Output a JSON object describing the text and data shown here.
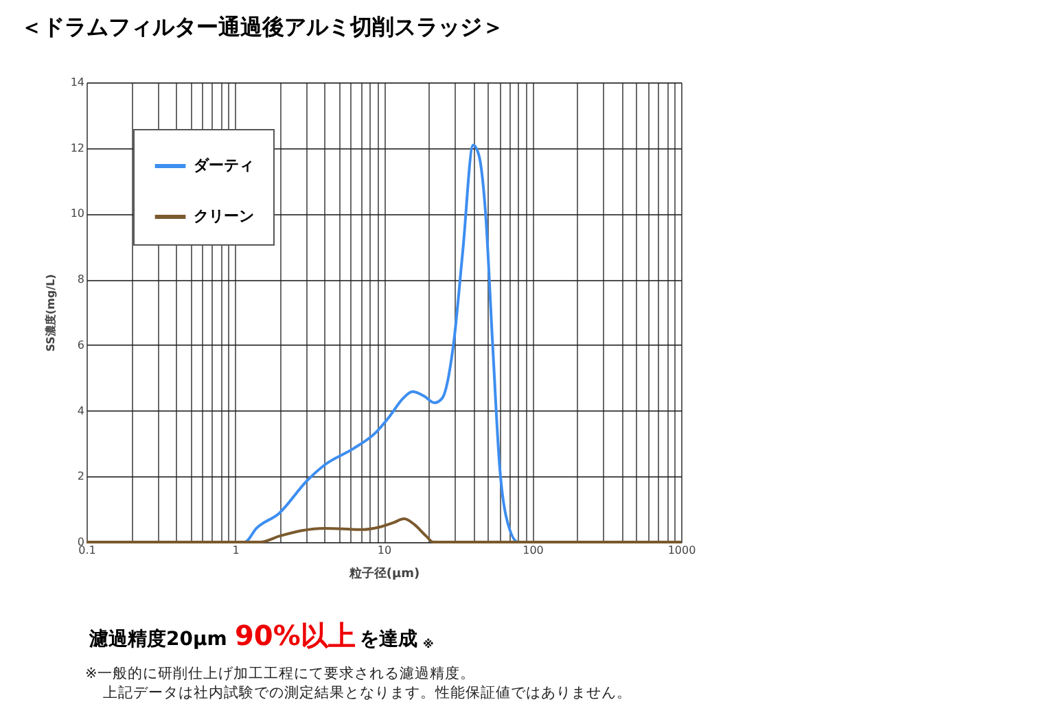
{
  "chart_data": {
    "type": "line",
    "title": "＜ドラムフィルター通過後アルミ切削スラッジ＞",
    "xlabel": "粒子径(μm)",
    "ylabel": "SS濃度(mg/L)",
    "log": "x",
    "grid": true,
    "legend": "top left",
    "marker": "none",
    "line_style": "solid",
    "xlim": [
      0.1,
      1000
    ],
    "ylim": [
      0,
      14
    ],
    "xticks": [
      0.1,
      {
        "value": 0.2,
        "label": null
      },
      {
        "value": 0.3,
        "label": null
      },
      {
        "value": 0.4,
        "label": null
      },
      {
        "value": 0.5,
        "label": null
      },
      {
        "value": 0.6,
        "label": null
      },
      {
        "value": 0.7,
        "label": null
      },
      {
        "value": 0.8,
        "label": null
      },
      {
        "value": 0.9,
        "label": null
      },
      1,
      {
        "value": 2,
        "label": null
      },
      {
        "value": 3,
        "label": null
      },
      {
        "value": 4,
        "label": null
      },
      {
        "value": 5,
        "label": null
      },
      {
        "value": 6,
        "label": null
      },
      {
        "value": 7,
        "label": null
      },
      {
        "value": 8,
        "label": null
      },
      {
        "value": 9,
        "label": null
      },
      10,
      {
        "value": 20,
        "label": null
      },
      {
        "value": 30,
        "label": null
      },
      {
        "value": 40,
        "label": null
      },
      {
        "value": 50,
        "label": null
      },
      {
        "value": 60,
        "label": null
      },
      {
        "value": 70,
        "label": null
      },
      {
        "value": 80,
        "label": null
      },
      {
        "value": 90,
        "label": null
      },
      100,
      {
        "value": 200,
        "label": null
      },
      {
        "value": 300,
        "label": null
      },
      {
        "value": 400,
        "label": null
      },
      {
        "value": 500,
        "label": null
      },
      {
        "value": 600,
        "label": null
      },
      {
        "value": 700,
        "label": null
      },
      {
        "value": 800,
        "label": null
      },
      {
        "value": 900,
        "label": null
      },
      1000
    ],
    "yticks": [
      0,
      2,
      4,
      6,
      8,
      10,
      12,
      14
    ],
    "series": [
      {
        "name": "ダーティ",
        "color": "#3d8ef0",
        "x": [
          0.1,
          1.16,
          1.39,
          1.98,
          3.03,
          4.0,
          6.2,
          8.8,
          10.9,
          13.5,
          15.6,
          18.6,
          21.9,
          24.7,
          29.5,
          34.0,
          39.9,
          43.5,
          48.4,
          53.9,
          60.2,
          66.8,
          80,
          1000
        ],
        "values": [
          0,
          0,
          0.42,
          0.88,
          1.86,
          2.35,
          2.84,
          3.33,
          3.82,
          4.38,
          4.58,
          4.45,
          4.24,
          4.38,
          6.06,
          8.87,
          12.09,
          11.8,
          9.99,
          6.06,
          2.28,
          0.74,
          0,
          0
        ]
      },
      {
        "name": "クリーン",
        "color": "#7b5a2e",
        "x": [
          0.1,
          1.48,
          1.98,
          2.8,
          4.0,
          7.1,
          9.4,
          11.7,
          13.7,
          16.1,
          19.3,
          21.5,
          1000
        ],
        "values": [
          0,
          0,
          0.18,
          0.35,
          0.42,
          0.38,
          0.46,
          0.6,
          0.71,
          0.53,
          0.18,
          0,
          0
        ]
      }
    ],
    "annotations": [
      "濾過精度20μm",
      "90%以上",
      "を達成",
      "※",
      "※一般的に研削仕上げ加工工程にて要求される濾過精度。",
      "上記データは社内試験での測定結果となります。性能保証値ではありません。"
    ]
  }
}
